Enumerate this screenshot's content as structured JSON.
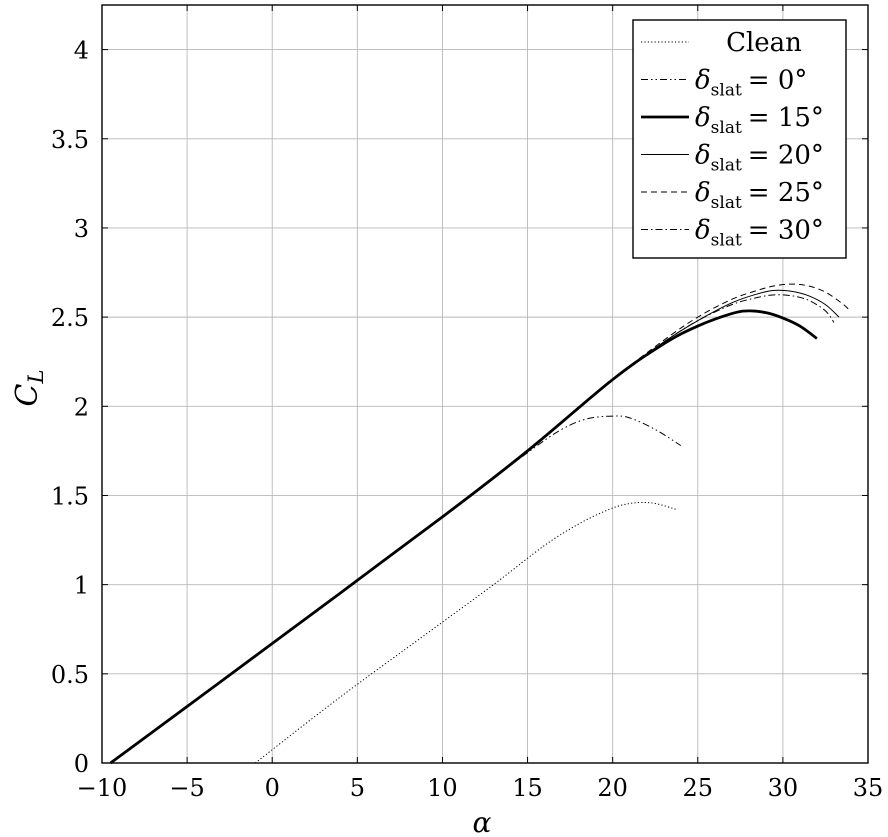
{
  "chart_data": {
    "type": "line",
    "xlabel": "α",
    "ylabel": "C",
    "ylabel_subscript": "L",
    "xlim": [
      -10,
      35
    ],
    "ylim": [
      0,
      4.25
    ],
    "xticks": [
      -10,
      -5,
      0,
      5,
      10,
      15,
      20,
      25,
      30,
      35
    ],
    "xtick_labels": [
      "−10",
      "−5",
      "0",
      "5",
      "10",
      "15",
      "20",
      "25",
      "30",
      "35"
    ],
    "yticks": [
      0,
      0.5,
      1,
      1.5,
      2,
      2.5,
      3,
      3.5,
      4
    ],
    "ytick_labels": [
      "0",
      "0.5",
      "1",
      "1.5",
      "2",
      "2.5",
      "3",
      "3.5",
      "4"
    ],
    "grid": true,
    "legend_position": "top-right",
    "series": [
      {
        "name": "Clean",
        "style": "dotted",
        "x": [
          -1,
          4,
          9,
          13,
          16,
          18,
          19.5,
          20.5,
          21.5,
          22.5,
          23.8
        ],
        "y": [
          0,
          0.37,
          0.72,
          1.0,
          1.22,
          1.34,
          1.41,
          1.445,
          1.46,
          1.455,
          1.42
        ]
      },
      {
        "name": "δslat = 0°",
        "label_symbol": "δ",
        "label_sub": "slat",
        "label_value": "= 0°",
        "style": "dash-dot-dot",
        "x": [
          -9.5,
          0,
          10,
          15,
          17,
          18.5,
          20,
          21,
          22.5,
          24
        ],
        "y": [
          0,
          0.67,
          1.38,
          1.74,
          1.87,
          1.93,
          1.945,
          1.935,
          1.87,
          1.78
        ]
      },
      {
        "name": "δslat = 15°",
        "label_symbol": "δ",
        "label_sub": "slat",
        "label_value": "= 15°",
        "style": "thick",
        "x": [
          -9.5,
          0,
          10,
          15,
          20,
          23,
          25,
          27,
          28,
          29,
          30,
          31,
          32
        ],
        "y": [
          0,
          0.67,
          1.38,
          1.75,
          2.15,
          2.35,
          2.45,
          2.52,
          2.535,
          2.525,
          2.495,
          2.45,
          2.38
        ]
      },
      {
        "name": "δslat = 20°",
        "label_symbol": "δ",
        "label_sub": "slat",
        "label_value": "= 20°",
        "style": "solid",
        "x": [
          15,
          20,
          23,
          25,
          27,
          28.5,
          29.5,
          30.5,
          31.5,
          32.5,
          33.3
        ],
        "y": [
          1.75,
          2.15,
          2.36,
          2.48,
          2.58,
          2.63,
          2.65,
          2.645,
          2.62,
          2.57,
          2.5
        ]
      },
      {
        "name": "δslat = 25°",
        "label_symbol": "δ",
        "label_sub": "slat",
        "label_value": "= 25°",
        "style": "dashed",
        "x": [
          12,
          15,
          20,
          23,
          25,
          27,
          28.5,
          29.5,
          30.5,
          31.5,
          32.5,
          33.5,
          34
        ],
        "y": [
          1.52,
          1.75,
          2.15,
          2.37,
          2.5,
          2.6,
          2.65,
          2.675,
          2.685,
          2.675,
          2.64,
          2.575,
          2.53
        ]
      },
      {
        "name": "δslat = 30°",
        "label_symbol": "δ",
        "label_sub": "slat",
        "label_value": "= 30°",
        "style": "dash-dot",
        "x": [
          15,
          20,
          23,
          25,
          27,
          28.5,
          29.5,
          30.5,
          31.5,
          32.5,
          33
        ],
        "y": [
          1.75,
          2.15,
          2.36,
          2.48,
          2.57,
          2.61,
          2.625,
          2.62,
          2.595,
          2.535,
          2.47
        ]
      }
    ]
  }
}
